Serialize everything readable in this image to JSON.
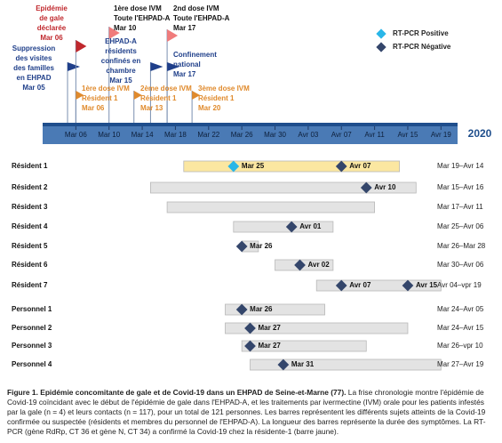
{
  "chart_data": {
    "type": "timeline",
    "year_label": "2020",
    "xlim": [
      "2020-03-02",
      "2020-04-21"
    ],
    "xticks": [
      {
        "value": "2020-03-06",
        "label": "Mar 06"
      },
      {
        "value": "2020-03-10",
        "label": "Mar 10"
      },
      {
        "value": "2020-03-14",
        "label": "Mar 14"
      },
      {
        "value": "2020-03-18",
        "label": "Mar 18"
      },
      {
        "value": "2020-03-22",
        "label": "Mar 22"
      },
      {
        "value": "2020-03-26",
        "label": "Mar 26"
      },
      {
        "value": "2020-03-30",
        "label": "Mar 30"
      },
      {
        "value": "2020-04-03",
        "label": "Avr 03"
      },
      {
        "value": "2020-04-07",
        "label": "Avr 07"
      },
      {
        "value": "2020-04-11",
        "label": "Avr 11"
      },
      {
        "value": "2020-04-15",
        "label": "Avr 15"
      },
      {
        "value": "2020-04-19",
        "label": "Avr 19"
      }
    ],
    "legend": [
      {
        "name": "RT-PCR Positive",
        "color": "#29b6e8"
      },
      {
        "name": "RT-PCR Négative",
        "color": "#34466b"
      }
    ],
    "events": [
      {
        "lines": [
          "Suppression",
          "des visites",
          "des familles",
          "en EHPAD"
        ],
        "date_label": "Mar 05",
        "date": "2020-03-05",
        "color": "#1f3f8a"
      },
      {
        "lines": [
          "Epidémie",
          "de gale",
          "déclarée"
        ],
        "date_label": "Mar 06",
        "date": "2020-03-06",
        "color": "#c0282d"
      },
      {
        "lines": [
          "1ère dose IVM",
          "Toute l'EHPAD-A"
        ],
        "date_label": "Mar 10",
        "date": "2020-03-10",
        "color": "#f07b7b"
      },
      {
        "lines": [
          "EHPAD-A",
          "résidents",
          "confinés en",
          "chambre"
        ],
        "date_label": "Mar 15",
        "date": "2020-03-15",
        "color": "#1f3f8a"
      },
      {
        "lines": [
          "2nd dose IVM",
          "Toute l'EHPAD-A"
        ],
        "date_label": "Mar 17",
        "date": "2020-03-17",
        "color": "#f07b7b"
      },
      {
        "lines": [
          "Confinement",
          "national"
        ],
        "date_label": "Mar 17",
        "date": "2020-03-17",
        "color": "#1f3f8a"
      },
      {
        "lines": [
          "1ère dose IVM",
          "Résident 1"
        ],
        "date_label": "Mar 06",
        "date": "2020-03-06",
        "color": "#e08a2c"
      },
      {
        "lines": [
          "2ème dose IVM",
          "Résident 1"
        ],
        "date_label": "Mar 13",
        "date": "2020-03-13",
        "color": "#e08a2c"
      },
      {
        "lines": [
          "3ème dose IVM",
          "Résident 1"
        ],
        "date_label": "Mar 20",
        "date": "2020-03-20",
        "color": "#e08a2c"
      }
    ],
    "rows": [
      {
        "name": "Résident 1",
        "start": "2020-03-19",
        "end": "2020-04-14",
        "range_label": "Mar 19–Avr 14",
        "color": "#fbe7a1",
        "tests": [
          {
            "date": "2020-03-25",
            "label": "Mar 25",
            "positive": true
          },
          {
            "date": "2020-04-07",
            "label": "Avr 07",
            "positive": false
          }
        ]
      },
      {
        "name": "Résident 2",
        "start": "2020-03-15",
        "end": "2020-04-16",
        "range_label": "Mar 15–Avr 16",
        "color": "#e3e3e3",
        "tests": [
          {
            "date": "2020-04-10",
            "label": "Avr 10",
            "positive": false
          }
        ]
      },
      {
        "name": "Résident 3",
        "start": "2020-03-17",
        "end": "2020-04-11",
        "range_label": "Mar 17–Avr 11",
        "color": "#e3e3e3",
        "tests": []
      },
      {
        "name": "Résident 4",
        "start": "2020-03-25",
        "end": "2020-04-06",
        "range_label": "Mar 25–Avr 06",
        "color": "#e3e3e3",
        "tests": [
          {
            "date": "2020-04-01",
            "label": "Avr 01",
            "positive": false
          }
        ]
      },
      {
        "name": "Résident 5",
        "start": "2020-03-26",
        "end": "2020-03-28",
        "range_label": "Mar 26–Mar 28",
        "color": "#e3e3e3",
        "tests": [
          {
            "date": "2020-03-26",
            "label": "Mar 26",
            "positive": false
          }
        ]
      },
      {
        "name": "Résident 6",
        "start": "2020-03-30",
        "end": "2020-04-06",
        "range_label": "Mar 30–Avr 06",
        "color": "#e3e3e3",
        "tests": [
          {
            "date": "2020-04-02",
            "label": "Avr 02",
            "positive": false
          }
        ]
      },
      {
        "name": "Résident 7",
        "start": "2020-04-04",
        "end": "2020-04-19",
        "range_label": "Avr 04–vpr 19",
        "color": "#e3e3e3",
        "tests": [
          {
            "date": "2020-04-07",
            "label": "Avr 07",
            "positive": false
          },
          {
            "date": "2020-04-15",
            "label": "Avr 15",
            "positive": false
          }
        ]
      },
      {
        "name": "Personnel 1",
        "start": "2020-03-24",
        "end": "2020-04-05",
        "range_label": "Mar 24–Avr 05",
        "color": "#e3e3e3",
        "tests": [
          {
            "date": "2020-03-26",
            "label": "Mar 26",
            "positive": false
          }
        ]
      },
      {
        "name": "Personnel 2",
        "start": "2020-03-24",
        "end": "2020-04-15",
        "range_label": "Mar 24–Avr 15",
        "color": "#e3e3e3",
        "tests": [
          {
            "date": "2020-03-27",
            "label": "Mar 27",
            "positive": false
          }
        ]
      },
      {
        "name": "Personnel 3",
        "start": "2020-03-26",
        "end": "2020-04-10",
        "range_label": "Mar 26–vpr 10",
        "color": "#e3e3e3",
        "tests": [
          {
            "date": "2020-03-27",
            "label": "Mar 27",
            "positive": false
          }
        ]
      },
      {
        "name": "Personnel 4",
        "start": "2020-03-27",
        "end": "2020-04-19",
        "range_label": "Mar 27–Avr 19",
        "color": "#e3e3e3",
        "tests": [
          {
            "date": "2020-03-31",
            "label": "Mar 31",
            "positive": false
          }
        ]
      }
    ]
  },
  "caption": {
    "title": "Figure 1. Epidémie concomitante de gale et de Covid-19 dans un EHPAD de Seine-et-Marne (77).",
    "text": "La frise chronologie montre l'épidémie de Covid-19 coïncidant avec le début de l'épidémie de gale dans l'EHPAD-A, et les traitements par ivermectine (IVM) orale pour les patients infestés par la gale (n = 4) et leurs contacts (n = 117), pour un total de 121 personnes. Les barres représentent les différents sujets atteints de la Covid-19 confirmée ou suspectée (résidents et membres du personnel de l'EHPAD-A). La longueur des barres représente la durée des symptômes. La RT-PCR (gène RdRp, CT 36 et gène N, CT 34) a confirmé la Covid-19 chez la résidente-1 (barre jaune)."
  }
}
